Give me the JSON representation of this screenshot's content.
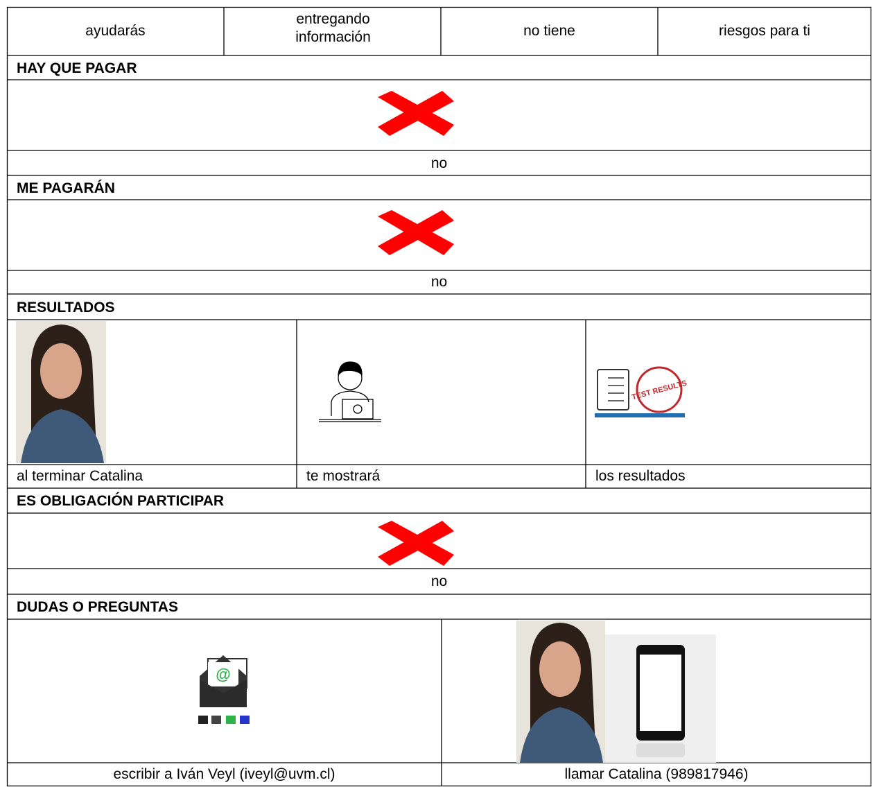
{
  "top_row": [
    "ayudarás",
    "entregando información",
    "no tiene",
    "riesgos para ti"
  ],
  "sections": [
    {
      "heading": "HAY QUE PAGAR",
      "answer": "no"
    },
    {
      "heading": "ME PAGARÁN",
      "answer": "no"
    },
    {
      "heading": "RESULTADOS",
      "captions": [
        "al terminar Catalina",
        "te mostrará",
        "los resultados"
      ],
      "stamp": "TEST RESULTS"
    },
    {
      "heading": "ES OBLIGACIÓN PARTICIPAR",
      "answer": "no"
    },
    {
      "heading": "DUDAS O PREGUNTAS",
      "captions": [
        "escribir a Iván Veyl (iveyl@uvm.cl)",
        "llamar Catalina (989817946)"
      ]
    }
  ]
}
